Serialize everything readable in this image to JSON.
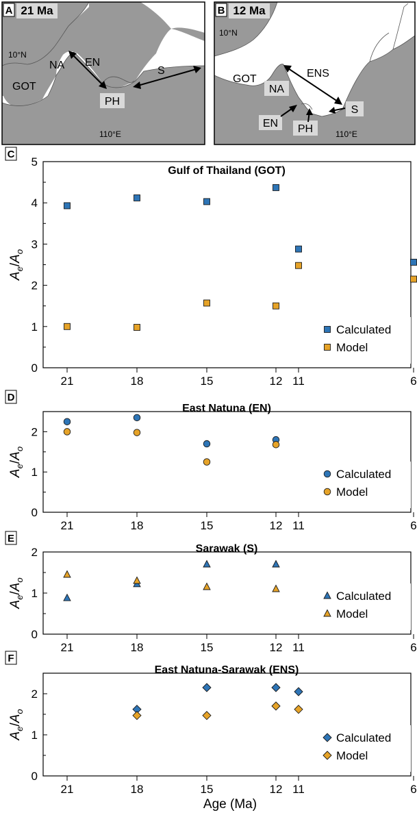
{
  "maps": [
    {
      "panel_letter": "A",
      "age_label": "21 Ma",
      "labels": {
        "got": "GOT",
        "na": "NA",
        "en": "EN",
        "ph": "PH",
        "s": "S",
        "lat": "10°N",
        "lon": "110°E"
      }
    },
    {
      "panel_letter": "B",
      "age_label": "12 Ma",
      "labels": {
        "got": "GOT",
        "na": "NA",
        "ens": "ENS",
        "en": "EN",
        "ph": "PH",
        "s": "S",
        "lat": "10°N",
        "lon": "110°E"
      }
    }
  ],
  "colors": {
    "land": "#999999",
    "calculated": "#2e75b6",
    "model": "#e6a328"
  },
  "xaxis": {
    "label": "Age (Ma)",
    "ticks": [
      "21",
      "18",
      "15",
      "12",
      "11",
      "6"
    ]
  },
  "chart_data": [
    {
      "panel_letter": "C",
      "type": "scatter",
      "title": "Gulf of Thailand (GOT)",
      "marker": "square",
      "ylim": [
        0,
        5
      ],
      "yticks": [
        "0",
        "1",
        "2",
        "3",
        "4",
        "5"
      ],
      "legend": "bottom-right",
      "series": [
        {
          "name": "Calculated",
          "points": [
            {
              "x": 21,
              "y": 3.93
            },
            {
              "x": 18,
              "y": 4.12
            },
            {
              "x": 15,
              "y": 4.03
            },
            {
              "x": 12,
              "y": 4.37
            },
            {
              "x": 11,
              "y": 2.88
            },
            {
              "x": 6,
              "y": 2.56
            }
          ]
        },
        {
          "name": "Model",
          "points": [
            {
              "x": 21,
              "y": 1.0
            },
            {
              "x": 18,
              "y": 0.98
            },
            {
              "x": 15,
              "y": 1.57
            },
            {
              "x": 12,
              "y": 1.5
            },
            {
              "x": 11,
              "y": 2.48
            },
            {
              "x": 6,
              "y": 2.15
            }
          ]
        }
      ]
    },
    {
      "panel_letter": "D",
      "type": "scatter",
      "title": "East Natuna (EN)",
      "marker": "circle",
      "ylim": [
        0,
        2.5
      ],
      "yticks": [
        "0",
        "1",
        "2"
      ],
      "legend": "bottom-right",
      "series": [
        {
          "name": "Calculated",
          "points": [
            {
              "x": 21,
              "y": 2.25
            },
            {
              "x": 18,
              "y": 2.35
            },
            {
              "x": 15,
              "y": 1.7
            },
            {
              "x": 12,
              "y": 1.8
            }
          ]
        },
        {
          "name": "Model",
          "points": [
            {
              "x": 21,
              "y": 2.0
            },
            {
              "x": 18,
              "y": 1.98
            },
            {
              "x": 15,
              "y": 1.25
            },
            {
              "x": 12,
              "y": 1.68
            }
          ]
        }
      ]
    },
    {
      "panel_letter": "E",
      "type": "scatter",
      "title": "Sarawak (S)",
      "marker": "triangle",
      "ylim": [
        0,
        2
      ],
      "yticks": [
        "0",
        "1",
        "2"
      ],
      "legend": "bottom-right",
      "series": [
        {
          "name": "Calculated",
          "points": [
            {
              "x": 21,
              "y": 0.88
            },
            {
              "x": 18,
              "y": 1.22
            },
            {
              "x": 15,
              "y": 1.7
            },
            {
              "x": 12,
              "y": 1.7
            }
          ]
        },
        {
          "name": "Model",
          "points": [
            {
              "x": 21,
              "y": 1.45
            },
            {
              "x": 18,
              "y": 1.3
            },
            {
              "x": 15,
              "y": 1.15
            },
            {
              "x": 12,
              "y": 1.1
            }
          ]
        }
      ]
    },
    {
      "panel_letter": "F",
      "type": "scatter",
      "title": "East Natuna-Sarawak (ENS)",
      "marker": "diamond",
      "ylim": [
        0,
        2.5
      ],
      "yticks": [
        "0",
        "1",
        "2"
      ],
      "legend": "bottom-right",
      "series": [
        {
          "name": "Calculated",
          "points": [
            {
              "x": 18,
              "y": 1.62
            },
            {
              "x": 15,
              "y": 2.15
            },
            {
              "x": 12,
              "y": 2.15
            },
            {
              "x": 11,
              "y": 2.05
            }
          ]
        },
        {
          "name": "Model",
          "points": [
            {
              "x": 18,
              "y": 1.47
            },
            {
              "x": 15,
              "y": 1.47
            },
            {
              "x": 12,
              "y": 1.7
            },
            {
              "x": 11,
              "y": 1.62
            }
          ]
        }
      ]
    }
  ]
}
